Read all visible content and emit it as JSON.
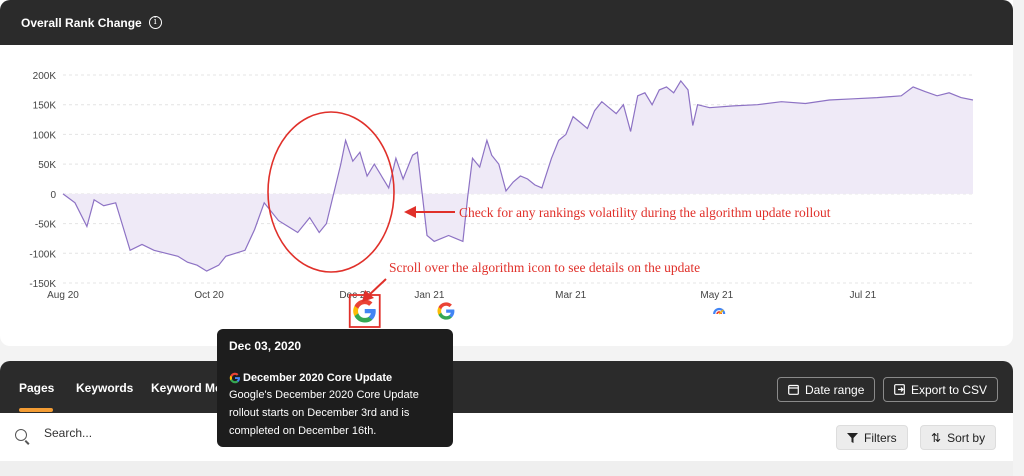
{
  "chart_card": {
    "title": "Overall Rank Change"
  },
  "chart_data": {
    "type": "area",
    "title": "Overall Rank Change",
    "y_ticks": [
      "200K",
      "150K",
      "100K",
      "50K",
      "0",
      "-50K",
      "-100K",
      "-150K"
    ],
    "y_tick_values": [
      200000,
      150000,
      100000,
      50000,
      0,
      -50000,
      -100000,
      -150000
    ],
    "ylim": [
      -150000,
      200000
    ],
    "x_ticks": [
      {
        "label": "Aug 20",
        "day": 0
      },
      {
        "label": "Oct 20",
        "day": 61
      },
      {
        "label": "Dec 20",
        "day": 122
      },
      {
        "label": "Jan 21",
        "day": 153
      },
      {
        "label": "Mar 21",
        "day": 212
      },
      {
        "label": "May 21",
        "day": 273
      },
      {
        "label": "Jul 21",
        "day": 334
      }
    ],
    "xlim": [
      0,
      380
    ],
    "grid": true,
    "colors": {
      "line": "#8d72c4",
      "fill": "#efeaf7"
    },
    "points": [
      [
        0,
        0
      ],
      [
        5,
        -15000
      ],
      [
        10,
        -55000
      ],
      [
        13,
        -10000
      ],
      [
        17,
        -20000
      ],
      [
        22,
        -15000
      ],
      [
        25,
        -55000
      ],
      [
        28,
        -95000
      ],
      [
        33,
        -85000
      ],
      [
        38,
        -95000
      ],
      [
        43,
        -100000
      ],
      [
        48,
        -105000
      ],
      [
        52,
        -115000
      ],
      [
        56,
        -120000
      ],
      [
        60,
        -130000
      ],
      [
        65,
        -120000
      ],
      [
        68,
        -105000
      ],
      [
        72,
        -100000
      ],
      [
        76,
        -95000
      ],
      [
        80,
        -60000
      ],
      [
        84,
        -15000
      ],
      [
        90,
        -45000
      ],
      [
        94,
        -55000
      ],
      [
        98,
        -65000
      ],
      [
        103,
        -40000
      ],
      [
        107,
        -65000
      ],
      [
        110,
        -50000
      ],
      [
        113,
        0
      ],
      [
        116,
        50000
      ],
      [
        118,
        90000
      ],
      [
        121,
        55000
      ],
      [
        124,
        70000
      ],
      [
        127,
        30000
      ],
      [
        130,
        50000
      ],
      [
        133,
        30000
      ],
      [
        136,
        10000
      ],
      [
        139,
        60000
      ],
      [
        142,
        25000
      ],
      [
        146,
        65000
      ],
      [
        148,
        70000
      ],
      [
        150,
        0
      ],
      [
        152,
        -70000
      ],
      [
        155,
        -80000
      ],
      [
        158,
        -75000
      ],
      [
        161,
        -70000
      ],
      [
        164,
        -75000
      ],
      [
        167,
        -80000
      ],
      [
        169,
        -5000
      ],
      [
        171,
        60000
      ],
      [
        174,
        45000
      ],
      [
        177,
        90000
      ],
      [
        179,
        65000
      ],
      [
        182,
        50000
      ],
      [
        185,
        5000
      ],
      [
        188,
        20000
      ],
      [
        191,
        30000
      ],
      [
        194,
        25000
      ],
      [
        197,
        15000
      ],
      [
        200,
        10000
      ],
      [
        204,
        60000
      ],
      [
        207,
        90000
      ],
      [
        210,
        100000
      ],
      [
        213,
        130000
      ],
      [
        216,
        120000
      ],
      [
        219,
        110000
      ],
      [
        222,
        140000
      ],
      [
        225,
        155000
      ],
      [
        228,
        145000
      ],
      [
        231,
        135000
      ],
      [
        234,
        150000
      ],
      [
        237,
        105000
      ],
      [
        240,
        165000
      ],
      [
        243,
        170000
      ],
      [
        246,
        150000
      ],
      [
        249,
        175000
      ],
      [
        252,
        180000
      ],
      [
        255,
        170000
      ],
      [
        258,
        190000
      ],
      [
        261,
        175000
      ],
      [
        263,
        115000
      ],
      [
        265,
        150000
      ],
      [
        270,
        145000
      ],
      [
        280,
        148000
      ],
      [
        290,
        150000
      ],
      [
        300,
        155000
      ],
      [
        310,
        152000
      ],
      [
        320,
        158000
      ],
      [
        330,
        160000
      ],
      [
        340,
        162000
      ],
      [
        350,
        165000
      ],
      [
        355,
        180000
      ],
      [
        360,
        172000
      ],
      [
        365,
        165000
      ],
      [
        370,
        170000
      ],
      [
        375,
        162000
      ],
      [
        380,
        158000
      ]
    ],
    "event_icons": [
      {
        "name": "google-icon",
        "day": 126,
        "boxed": true
      },
      {
        "name": "google-icon",
        "day": 160,
        "boxed": false
      },
      {
        "name": "update-icon",
        "day": 274,
        "boxed": false
      }
    ],
    "annotations": [
      "Check for any rankings volatility during the algorithm update rollout",
      "Scroll over the algorithm icon to see details on the update"
    ]
  },
  "tooltip": {
    "date": "Dec 03, 2020",
    "title": "December 2020 Core Update",
    "body": "Google's December 2020 Core Update rollout starts on December 3rd and is completed on December 16th."
  },
  "tabs": [
    {
      "label": "Pages"
    },
    {
      "label": "Keywords"
    },
    {
      "label": "Keyword Mo"
    }
  ],
  "toolbar": {
    "date_range": "Date range",
    "export": "Export to CSV",
    "filters": "Filters",
    "sort": "Sort by"
  },
  "search": {
    "placeholder": "Search..."
  }
}
